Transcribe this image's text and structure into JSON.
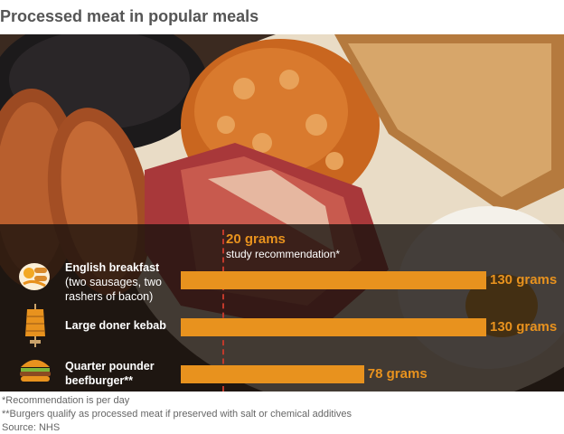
{
  "title": "Processed meat in popular meals",
  "chart_data": {
    "type": "bar",
    "orientation": "horizontal",
    "unit": "grams",
    "categories": [
      "English breakfast",
      "Large doner kebab",
      "Quarter pounder beefburger**"
    ],
    "category_notes": [
      "(two sausages, two rashers of bacon)",
      "",
      ""
    ],
    "values": [
      130,
      130,
      78
    ],
    "value_labels": [
      "130 grams",
      "130 grams",
      "78 grams"
    ],
    "reference_line": {
      "value": 20,
      "label": "20 grams",
      "description": "study recommendation*"
    },
    "bar_color": "#e8921e",
    "reference_color": "#c0392b",
    "xlim": [
      0,
      130
    ]
  },
  "labels": {
    "breakfast_name": "English breakfast",
    "breakfast_sub1": "(two sausages, two",
    "breakfast_sub2": "rashers of bacon)",
    "kebab_name": "Large doner kebab",
    "burger_name1": "Quarter pounder",
    "burger_name2": "beefburger**"
  },
  "footnotes": {
    "note1": "*Recommendation is per day",
    "note2": "**Burgers qualify as processed meat if preserved with salt or chemical additives",
    "source": "Source: NHS"
  },
  "icons": [
    "breakfast-icon",
    "kebab-icon",
    "burger-icon"
  ]
}
